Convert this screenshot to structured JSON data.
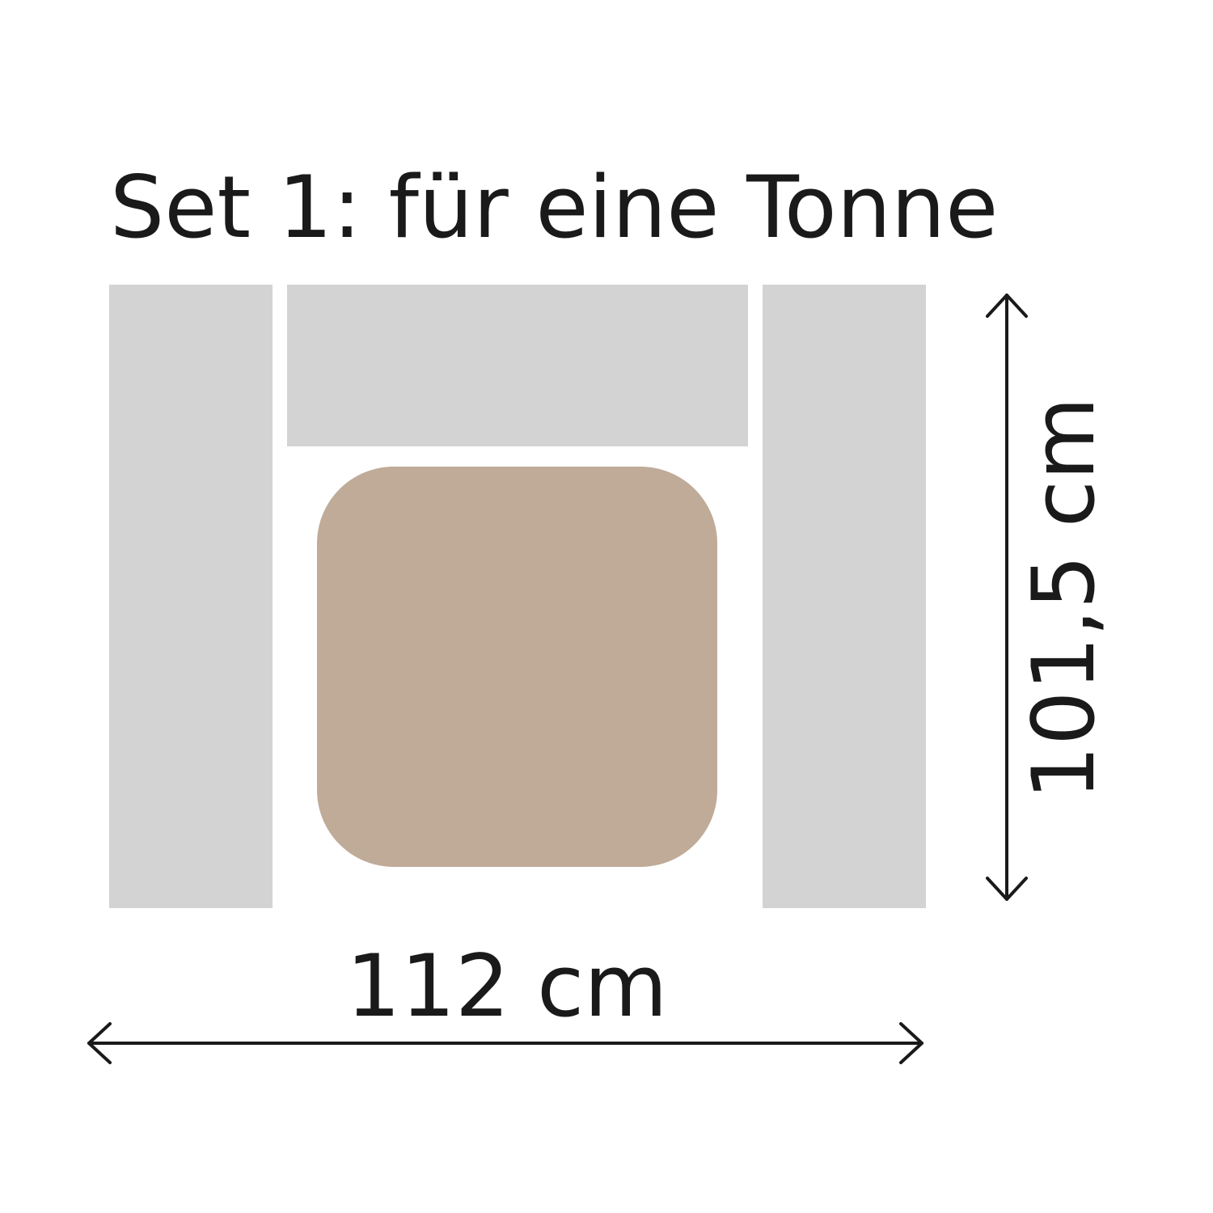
{
  "title": "Set 1: für eine Tonne",
  "dimensions": {
    "width": "112 cm",
    "height": "101,5 cm"
  },
  "colors": {
    "panel": "#d3d3d3",
    "lid": "#bfab98",
    "line": "#1a1a1a"
  },
  "icons": {
    "width_arrow": "double-arrow-horizontal-icon",
    "height_arrow": "double-arrow-vertical-icon"
  }
}
